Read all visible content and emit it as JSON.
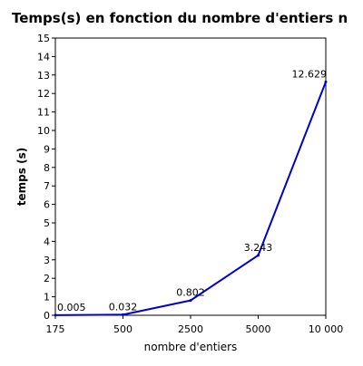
{
  "chart_data": {
    "type": "line",
    "title": "Temps(s) en fonction du nombre d'entiers n",
    "xlabel": "nombre d'entiers",
    "ylabel": "temps (s)",
    "categories": [
      "175",
      "500",
      "2500",
      "5000",
      "10 000"
    ],
    "series": [
      {
        "values": [
          0.005,
          0.032,
          0.802,
          3.243,
          12.629
        ],
        "data_labels": [
          "0.005",
          "0.032",
          "0.802",
          "3.243",
          "12.629"
        ],
        "color": "#0000cc"
      }
    ],
    "ylim": [
      0,
      15
    ],
    "yticks": [
      0,
      1,
      2,
      3,
      4,
      5,
      6,
      7,
      8,
      9,
      10,
      11,
      12,
      13,
      14,
      15
    ],
    "grid": false,
    "legend": "none"
  }
}
